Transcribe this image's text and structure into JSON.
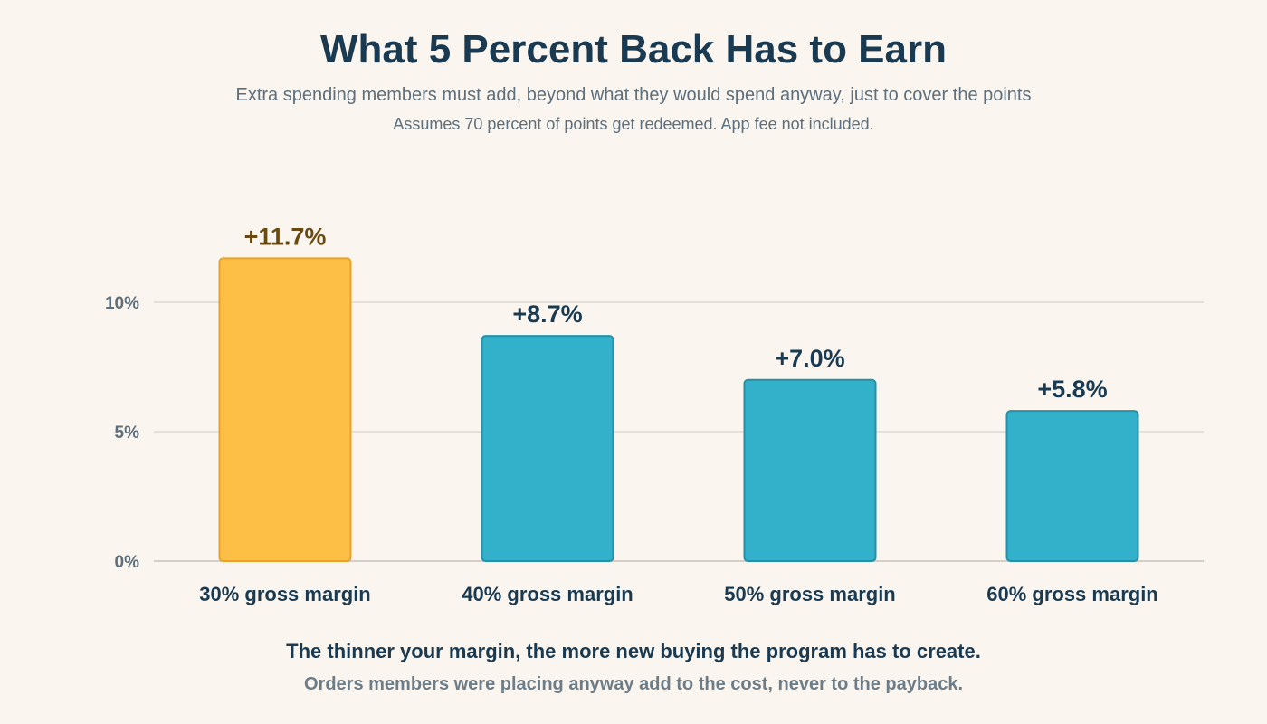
{
  "header": {
    "title": "What 5 Percent Back Has to Earn",
    "subtitle": "Extra spending members must add, beyond what they would spend anyway, just to cover the points",
    "note": "Assumes 70 percent of points get redeemed. App fee not included."
  },
  "footer": {
    "headline": "The thinner your margin, the more new buying the program has to create.",
    "subline": "Orders members were placing anyway add to the cost, never to the payback."
  },
  "chart_data": {
    "type": "bar",
    "title": "What 5 Percent Back Has to Earn",
    "categories": [
      "30% gross margin",
      "40% gross margin",
      "50% gross margin",
      "60% gross margin"
    ],
    "values": [
      11.7,
      8.7,
      7.0,
      5.8
    ],
    "value_labels": [
      "+11.7%",
      "+8.7%",
      "+7.0%",
      "+5.8%"
    ],
    "highlight_index": 0,
    "ylim": [
      0,
      15
    ],
    "yticks": [
      0,
      5,
      10
    ],
    "ytick_labels": [
      "0%",
      "5%",
      "10%"
    ],
    "xlabel": "",
    "ylabel": "",
    "grid": true,
    "colors": {
      "highlight_fill": "#fdbf45",
      "highlight_stroke": "#e9a229",
      "highlight_label": "#6b4a12",
      "bar_fill": "#33b0ca",
      "bar_stroke": "#2690a8",
      "bar_label": "#1a3a52",
      "grid": "#d8d4ce",
      "tick_label": "#5d6f7c",
      "category_label": "#1a3a52"
    }
  }
}
